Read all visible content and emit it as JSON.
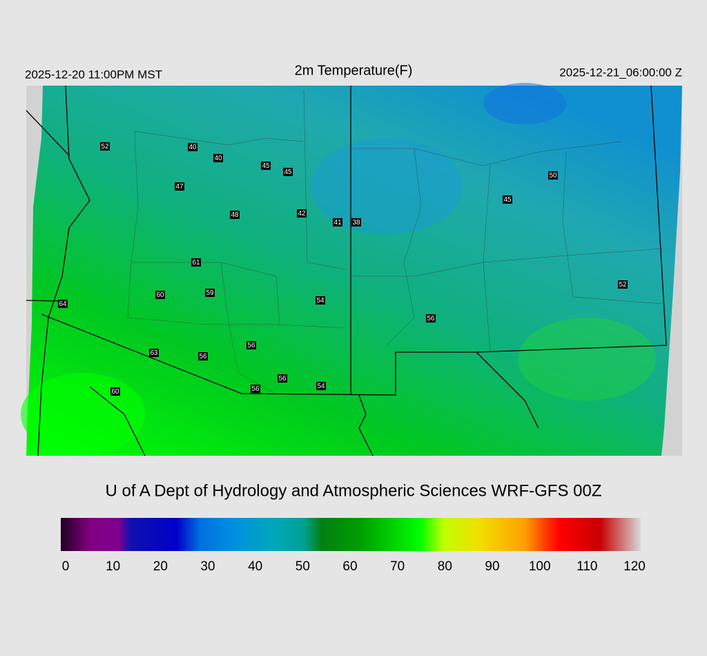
{
  "header": {
    "title": "2m Temperature(F)",
    "valid_local": "2025-12-20 11:00PM MST",
    "valid_utc": "2025-12-21_06:00:00 Z"
  },
  "stations": [
    52,
    40,
    40,
    45,
    45,
    47,
    48,
    42,
    41,
    38,
    50,
    45,
    61,
    60,
    59,
    54,
    64,
    56,
    52,
    56,
    63,
    56,
    56,
    54,
    56,
    60
  ],
  "credit": "U of A Dept of Hydrology and Atmospheric Sciences WRF-GFS 00Z",
  "colorbar": {
    "ticks": [
      0,
      10,
      20,
      30,
      40,
      50,
      60,
      70,
      80,
      90,
      100,
      110,
      120
    ]
  }
}
